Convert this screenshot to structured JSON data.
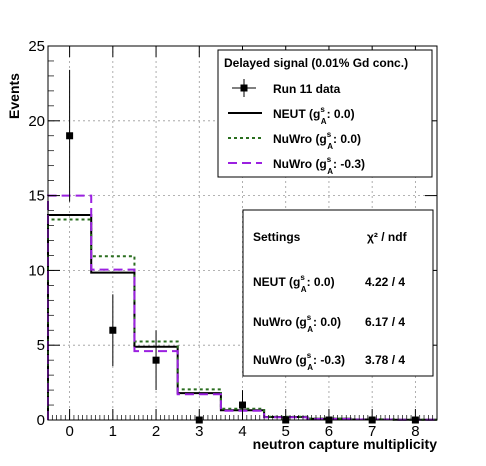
{
  "chart_data": {
    "type": "histogram",
    "xlabel": "neutron capture multiplicity",
    "ylabel": "Events",
    "xlim": [
      -0.5,
      8.5
    ],
    "ylim": [
      0,
      25
    ],
    "x_ticks": [
      "0",
      "1",
      "2",
      "3",
      "4",
      "5",
      "6",
      "7",
      "8"
    ],
    "y_ticks": [
      "0",
      "5",
      "10",
      "15",
      "20",
      "25"
    ],
    "grid": true,
    "data": {
      "name": "Run 11 data",
      "x": [
        0,
        1,
        2,
        3,
        4,
        5,
        6,
        7,
        8
      ],
      "y": [
        19,
        6,
        4,
        0,
        1,
        0,
        0,
        0,
        0
      ],
      "err_low": [
        4.4,
        2.4,
        2.0,
        0,
        1.0,
        0,
        0,
        0,
        0
      ],
      "err_high": [
        4.4,
        2.4,
        2.0,
        0,
        1.0,
        0,
        0,
        0,
        0
      ]
    },
    "series": [
      {
        "name": "NEUT (g_A^s: 0.0)",
        "color": "#000000",
        "style": "solid",
        "values": [
          13.7,
          9.85,
          4.9,
          1.8,
          0.65,
          0.2,
          0.08,
          0.03,
          0.02
        ]
      },
      {
        "name": "NuWro (g_A^s: 0.0)",
        "color": "#2a6e1f",
        "style": "dotted",
        "values": [
          13.4,
          10.95,
          5.25,
          2.05,
          0.75,
          0.22,
          0.09,
          0.04,
          0.02
        ]
      },
      {
        "name": "NuWro (g_A^s: -0.3)",
        "color": "#9b20e0",
        "style": "dashed",
        "values": [
          15.0,
          10.05,
          4.6,
          1.72,
          0.62,
          0.18,
          0.07,
          0.03,
          0.02
        ]
      }
    ],
    "legend": {
      "title": "Delayed signal (0.01% Gd conc.)",
      "placement": "top-right",
      "entries": [
        {
          "main": "Run 11 data",
          "sub": ""
        },
        {
          "main": "NEUT (g",
          "sup": "s",
          "sub": "A",
          "tail": ": 0.0)"
        },
        {
          "main": "NuWro (g",
          "sup": "s",
          "sub": "A",
          "tail": ": 0.0)"
        },
        {
          "main": "NuWro (g",
          "sup": "s",
          "sub": "A",
          "tail": ": -0.3)"
        }
      ]
    },
    "stats_box": {
      "header": "Settings",
      "col_header": "χ²  /  ndf",
      "rows": [
        {
          "main": "NEUT (g",
          "sup": "s",
          "sub": "A",
          "tail": ": 0.0)",
          "value": "4.22 / 4"
        },
        {
          "main": "NuWro (g",
          "sup": "s",
          "sub": "A",
          "tail": ": 0.0)",
          "value": "6.17 / 4"
        },
        {
          "main": "NuWro (g",
          "sup": "s",
          "sub": "A",
          "tail": ": -0.3)",
          "value": "3.78 / 4"
        }
      ]
    }
  }
}
